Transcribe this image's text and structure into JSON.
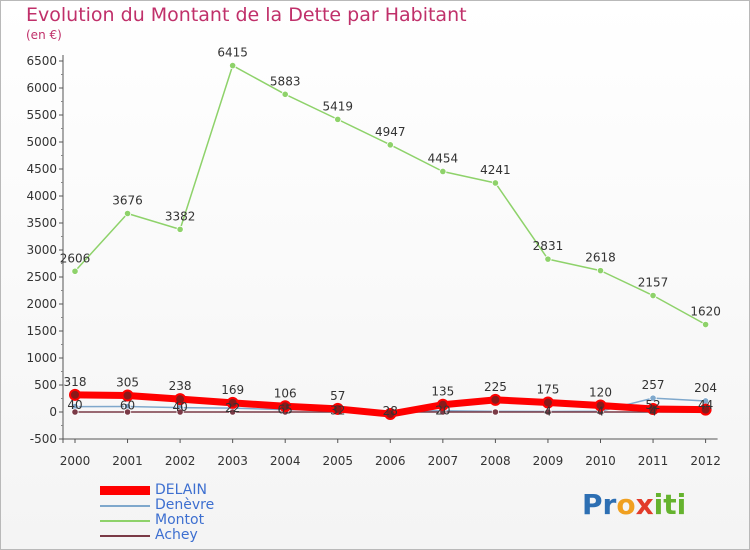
{
  "title": "Evolution du Montant de la Dette par Habitant",
  "unit": "(en €)",
  "logo": {
    "parts": [
      "Pr",
      "o",
      "x",
      "iti"
    ],
    "colors": [
      "#2d6fb3",
      "#f0a020",
      "#e23b2a",
      "#65b32e"
    ]
  },
  "chart_data": {
    "type": "line",
    "categories": [
      "2000",
      "2001",
      "2002",
      "2003",
      "2004",
      "2005",
      "2006",
      "2007",
      "2008",
      "2009",
      "2010",
      "2011",
      "2012"
    ],
    "ylim": [
      -500,
      6500
    ],
    "yticks": [
      "-500",
      "0",
      "500",
      "1000",
      "1500",
      "2000",
      "2500",
      "3000",
      "3500",
      "4000",
      "4500",
      "5000",
      "5500",
      "6000",
      "6500"
    ],
    "grid": false,
    "legend_position": "bottom-left",
    "series": [
      {
        "name": "Montot",
        "color": "#8ed26a",
        "values": [
          2606,
          3676,
          3382,
          6415,
          5883,
          5419,
          4947,
          4454,
          4241,
          2831,
          2618,
          2157,
          1620
        ],
        "labels": [
          "2606",
          "3676",
          "3382",
          "6415",
          "5883",
          "5419",
          "4947",
          "4454",
          "4241",
          "2831",
          "2618",
          "2157",
          "1620"
        ]
      },
      {
        "name": "Denèvre",
        "color": "#7fa8cc",
        "values": [
          100,
          102,
          82,
          72,
          45,
          28,
          20,
          22,
          12,
          10,
          14,
          257,
          204
        ],
        "labels": [
          "",
          "",
          "",
          "",
          "",
          "",
          "",
          "",
          "",
          "",
          "",
          "257",
          "204"
        ]
      },
      {
        "name": "Achey",
        "color": "#7a3a46",
        "values": [
          0,
          0,
          0,
          0,
          0,
          0,
          0,
          0,
          0,
          0,
          0,
          0,
          0
        ],
        "labels": [
          "",
          "",
          "",
          "",
          "",
          "",
          "",
          "",
          "",
          "",
          "",
          "",
          ""
        ]
      },
      {
        "name": "DELAIN",
        "color": "#ff0000",
        "values": [
          318,
          305,
          238,
          169,
          106,
          57,
          -38,
          135,
          225,
          175,
          120,
          56,
          44
        ],
        "labels": [
          "318",
          "305",
          "238",
          "169",
          "106",
          "57",
          "",
          "135",
          "225",
          "175",
          "120",
          "",
          ""
        ]
      }
    ],
    "overlap_labels": [
      {
        "text": "40",
        "x": "2000",
        "y": 130
      },
      {
        "text": "60",
        "x": "2001",
        "y": 122
      },
      {
        "text": "40",
        "x": "2002",
        "y": 88
      },
      {
        "text": "22",
        "x": "2003",
        "y": 70
      },
      {
        "text": "65",
        "x": "2004",
        "y": 48
      },
      {
        "text": "32",
        "x": "2005",
        "y": 25
      },
      {
        "text": "28",
        "x": "2006",
        "y": 20
      },
      {
        "text": "20",
        "x": "2007",
        "y": 24
      },
      {
        "text": "4",
        "x": "2009",
        "y": 6
      },
      {
        "text": "4",
        "x": "2010",
        "y": 6
      },
      {
        "text": "52",
        "x": "2011",
        "y": 130
      },
      {
        "text": "4",
        "x": "2011",
        "y": 6
      },
      {
        "text": "44",
        "x": "2012",
        "y": 130
      }
    ]
  },
  "legend": [
    {
      "label": "DELAIN",
      "color": "#ff0000",
      "thick": true
    },
    {
      "label": "Denèvre",
      "color": "#7fa8cc",
      "thick": false
    },
    {
      "label": "Montot",
      "color": "#8ed26a",
      "thick": false
    },
    {
      "label": "Achey",
      "color": "#7a3a46",
      "thick": false
    }
  ]
}
